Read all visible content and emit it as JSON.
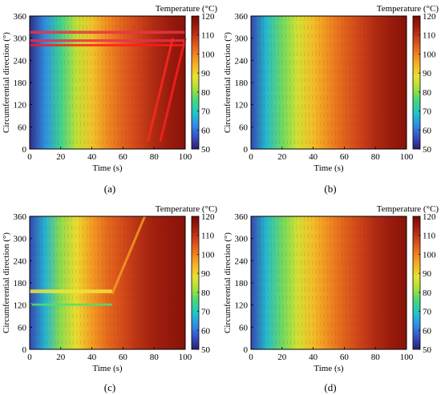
{
  "figure": {
    "colorbar_ticks": [
      50,
      60,
      70,
      80,
      90,
      100,
      110,
      120
    ]
  },
  "colormap": [
    "#2b1f6e",
    "#3a4fc4",
    "#2f8fe6",
    "#1fc7c9",
    "#46d67d",
    "#a8e03a",
    "#e8e22f",
    "#f6b126",
    "#ee7a1f",
    "#d2481a",
    "#a3200f",
    "#7a0b05"
  ],
  "chart_data": [
    {
      "type": "heatmap",
      "panel_label": "(a)",
      "xlabel": "Time (s)",
      "ylabel": "Circumferential direction (°)",
      "colorbar_title": "Temperature (°C)",
      "x_ticks": [
        0,
        20,
        40,
        60,
        80,
        100
      ],
      "y_ticks": [
        0,
        60,
        120,
        180,
        240,
        300,
        360
      ],
      "xlim": [
        0,
        100
      ],
      "ylim": [
        0,
        360
      ],
      "clim": [
        50,
        120
      ],
      "x": [
        0,
        10,
        20,
        30,
        40,
        50,
        60,
        70,
        80,
        90,
        100
      ],
      "temperature_profile": [
        52,
        63,
        74,
        84,
        92,
        99,
        104,
        108,
        112,
        115,
        118
      ],
      "anomalies": [
        {
          "kind": "band",
          "y": [
            312,
            320
          ],
          "x": [
            0,
            100
          ],
          "color": "#e8344a"
        },
        {
          "kind": "band",
          "y": [
            290,
            297
          ],
          "x": [
            0,
            100
          ],
          "color": "#ee2a52"
        },
        {
          "kind": "band",
          "y": [
            278,
            284
          ],
          "x": [
            0,
            100
          ],
          "color": "#ff1c1c"
        },
        {
          "kind": "diag",
          "x": [
            84,
            100
          ],
          "y": [
            20,
            300
          ],
          "color": "#ff2020"
        },
        {
          "kind": "diag",
          "x": [
            76,
            92
          ],
          "y": [
            20,
            300
          ],
          "color": "#ff2a20"
        }
      ]
    },
    {
      "type": "heatmap",
      "panel_label": "(b)",
      "xlabel": "Time (s)",
      "ylabel": "Circumferential direction (°)",
      "colorbar_title": "Temperature (°C)",
      "x_ticks": [
        0,
        20,
        40,
        60,
        80,
        100
      ],
      "y_ticks": [
        0,
        60,
        120,
        180,
        240,
        300,
        360
      ],
      "xlim": [
        0,
        100
      ],
      "ylim": [
        0,
        360
      ],
      "clim": [
        50,
        120
      ],
      "x": [
        0,
        10,
        20,
        30,
        40,
        50,
        60,
        70,
        80,
        90,
        100
      ],
      "temperature_profile": [
        55,
        68,
        78,
        86,
        93,
        99,
        104,
        108,
        112,
        115,
        118
      ],
      "anomalies": []
    },
    {
      "type": "heatmap",
      "panel_label": "(c)",
      "xlabel": "Time (s)",
      "ylabel": "Circumferential direction (°)",
      "colorbar_title": "Temperature (°C)",
      "x_ticks": [
        0,
        20,
        40,
        60,
        80,
        100
      ],
      "y_ticks": [
        0,
        60,
        120,
        180,
        240,
        300,
        360
      ],
      "xlim": [
        0,
        100
      ],
      "ylim": [
        0,
        360
      ],
      "clim": [
        50,
        120
      ],
      "x": [
        0,
        10,
        20,
        30,
        40,
        50,
        60,
        70,
        80,
        90,
        100
      ],
      "temperature_profile": [
        55,
        67,
        80,
        89,
        97,
        103,
        107,
        111,
        114,
        116,
        118
      ],
      "anomalies": [
        {
          "kind": "band",
          "y": [
            152,
            162
          ],
          "x": [
            0,
            53
          ],
          "color": "#f2e43a"
        },
        {
          "kind": "band",
          "y": [
            118,
            124
          ],
          "x": [
            0,
            53
          ],
          "color": "#4fe070"
        },
        {
          "kind": "diag",
          "x": [
            53,
            74
          ],
          "y": [
            150,
            360
          ],
          "color": "#f5a021"
        }
      ]
    },
    {
      "type": "heatmap",
      "panel_label": "(d)",
      "xlabel": "Time (s)",
      "ylabel": "Circumferential direction (°)",
      "colorbar_title": "Temperature (°C)",
      "x_ticks": [
        0,
        20,
        40,
        60,
        80,
        100
      ],
      "y_ticks": [
        0,
        60,
        120,
        180,
        240,
        300,
        360
      ],
      "xlim": [
        0,
        100
      ],
      "ylim": [
        0,
        360
      ],
      "clim": [
        50,
        120
      ],
      "x": [
        0,
        10,
        20,
        30,
        40,
        50,
        60,
        70,
        80,
        90,
        100
      ],
      "temperature_profile": [
        55,
        68,
        78,
        86,
        93,
        99,
        104,
        108,
        112,
        115,
        118
      ],
      "anomalies": []
    }
  ]
}
